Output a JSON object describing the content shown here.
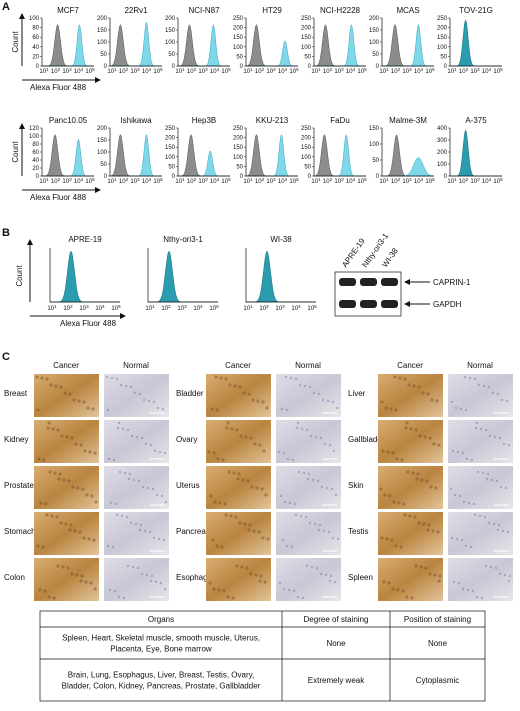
{
  "panel_a": {
    "label": "A",
    "y_axis_label": "Count",
    "x_axis_label": "Alexa Fluor 488",
    "x_tick_base": "10",
    "x_tick_exponents": [
      1,
      2,
      3,
      4,
      5
    ],
    "histograms": [
      {
        "title": "MCF7",
        "yticks": [
          0,
          20,
          40,
          60,
          80,
          100
        ]
      },
      {
        "title": "22Rv1",
        "yticks": [
          0,
          50,
          100,
          150,
          200
        ]
      },
      {
        "title": "NCI-N87",
        "yticks": [
          0,
          50,
          100,
          150,
          200
        ]
      },
      {
        "title": "HT29",
        "yticks": [
          0,
          50,
          100,
          150,
          200,
          250
        ]
      },
      {
        "title": "NCI-H2228",
        "yticks": [
          0,
          50,
          100,
          150,
          200,
          250
        ]
      },
      {
        "title": "MCAS",
        "yticks": [
          0,
          50,
          100,
          150,
          200
        ]
      },
      {
        "title": "TOV-21G",
        "yticks": [
          0,
          50,
          100,
          150,
          200,
          250
        ]
      },
      {
        "title": "Panc10.05",
        "yticks": [
          0,
          20,
          40,
          60,
          80,
          100,
          120
        ]
      },
      {
        "title": "Ishikawa",
        "yticks": [
          0,
          50,
          100,
          150,
          200
        ]
      },
      {
        "title": "Hep3B",
        "yticks": [
          0,
          50,
          100,
          150,
          200,
          250
        ]
      },
      {
        "title": "KKU-213",
        "yticks": [
          0,
          50,
          100,
          150,
          200,
          250
        ]
      },
      {
        "title": "FaDu",
        "yticks": [
          0,
          50,
          100,
          150,
          200,
          250
        ]
      },
      {
        "title": "Malme-3M",
        "yticks": [
          0,
          50,
          100,
          150
        ]
      },
      {
        "title": "A-375",
        "yticks": [
          0,
          100,
          200,
          300,
          400
        ]
      }
    ]
  },
  "panel_b": {
    "label": "B",
    "y_axis_label": "Count",
    "x_axis_label": "Alexa Fluor 488",
    "x_tick_base": "10",
    "x_tick_exponents": [
      1,
      2,
      3,
      4,
      5
    ],
    "histograms": [
      {
        "title": "APRE-19"
      },
      {
        "title": "Nthy-ori3-1"
      },
      {
        "title": "WI-38"
      }
    ],
    "blot": {
      "lanes": [
        "APRE-19",
        "Nthy-ori3-1",
        "WI-38"
      ],
      "bands": [
        "CAPRIN-1",
        "GAPDH"
      ]
    }
  },
  "panel_c": {
    "label": "C",
    "groups": [
      {
        "cancer_header": "Cancer",
        "normal_header": "Normal",
        "organs": [
          "Breast",
          "Kidney",
          "Prostate",
          "Stomach",
          "Colon"
        ]
      },
      {
        "cancer_header": "Cancer",
        "normal_header": "Normal",
        "organs": [
          "Bladder",
          "Ovary",
          "Uterus",
          "Pancreas",
          "Esophagus"
        ]
      },
      {
        "cancer_header": "Cancer",
        "normal_header": "Normal",
        "organs": [
          "Liver",
          "Gallbladder",
          "Skin",
          "Testis",
          "Spleen"
        ]
      }
    ]
  },
  "table": {
    "header": [
      "Organs",
      "Degree of staining",
      "Position of staining"
    ],
    "rows": [
      [
        "Spleen, Heart, Skeletal muscle, smooth muscle, Uterus, Placenta, Eye, Bone marrow",
        "None",
        "None"
      ],
      [
        "Brain, Lung, Esophagus, Liver, Breast, Testis, Ovary, Bladder, Colon, Kidney, Pancreas, Prostate, Gallbladder",
        "Extremely weak",
        "Cytoplasmic"
      ]
    ]
  }
}
